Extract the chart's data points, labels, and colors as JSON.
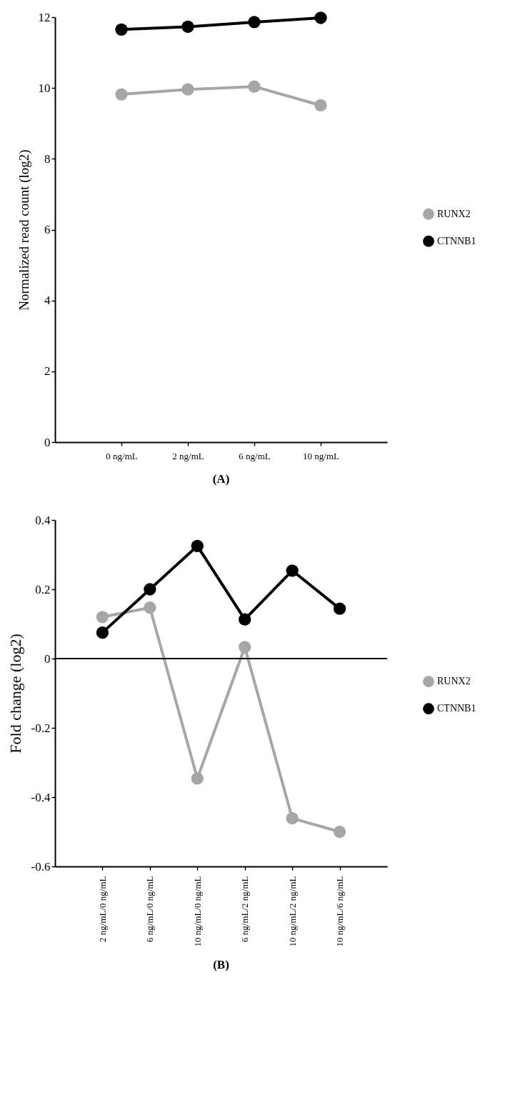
{
  "chart_data": [
    {
      "type": "line",
      "title": "(A)",
      "ylabel": "Normalized read count (log2)",
      "categories": [
        "0 ng/mL",
        "2 ng/mL",
        "6 ng/mL",
        "10 ng/mL"
      ],
      "series": [
        {
          "name": "RUNX2",
          "color": "#a6a6a6",
          "values": [
            9.82,
            9.96,
            10.04,
            9.51
          ]
        },
        {
          "name": "CTNNB1",
          "color": "#000000",
          "values": [
            11.65,
            11.73,
            11.86,
            11.98
          ]
        }
      ],
      "ylim": [
        0,
        12
      ],
      "yticks": [
        0,
        2,
        4,
        6,
        8,
        10,
        12
      ],
      "grid": false,
      "legend": "right",
      "marker": "circle",
      "line_style": "solid"
    },
    {
      "type": "line",
      "title": "(B)",
      "ylabel": "Fold change (log2)",
      "categories": [
        "2 ng/mL/0 ng/mL",
        "6 ng/mL/0 ng/mL",
        "10 ng/mL/0 ng/mL",
        "6 ng/mL/2 ng/mL",
        "10 ng/mL/2 ng/mL",
        "10 ng/mL/6 ng/mL"
      ],
      "series": [
        {
          "name": "RUNX2",
          "color": "#a6a6a6",
          "values": [
            0.12,
            0.147,
            -0.346,
            0.033,
            -0.461,
            -0.5
          ]
        },
        {
          "name": "CTNNB1",
          "color": "#000000",
          "values": [
            0.075,
            0.2,
            0.325,
            0.113,
            0.254,
            0.144
          ]
        }
      ],
      "ylim": [
        -0.6,
        0.4
      ],
      "yticks": [
        -0.6,
        -0.4,
        -0.2,
        0,
        0.2,
        0.4
      ],
      "ref_lines": [
        {
          "axis": "y",
          "value": 0,
          "color": "#000000",
          "line_style": "solid"
        }
      ],
      "grid": false,
      "legend": "right",
      "marker": "circle",
      "line_style": "solid"
    }
  ]
}
